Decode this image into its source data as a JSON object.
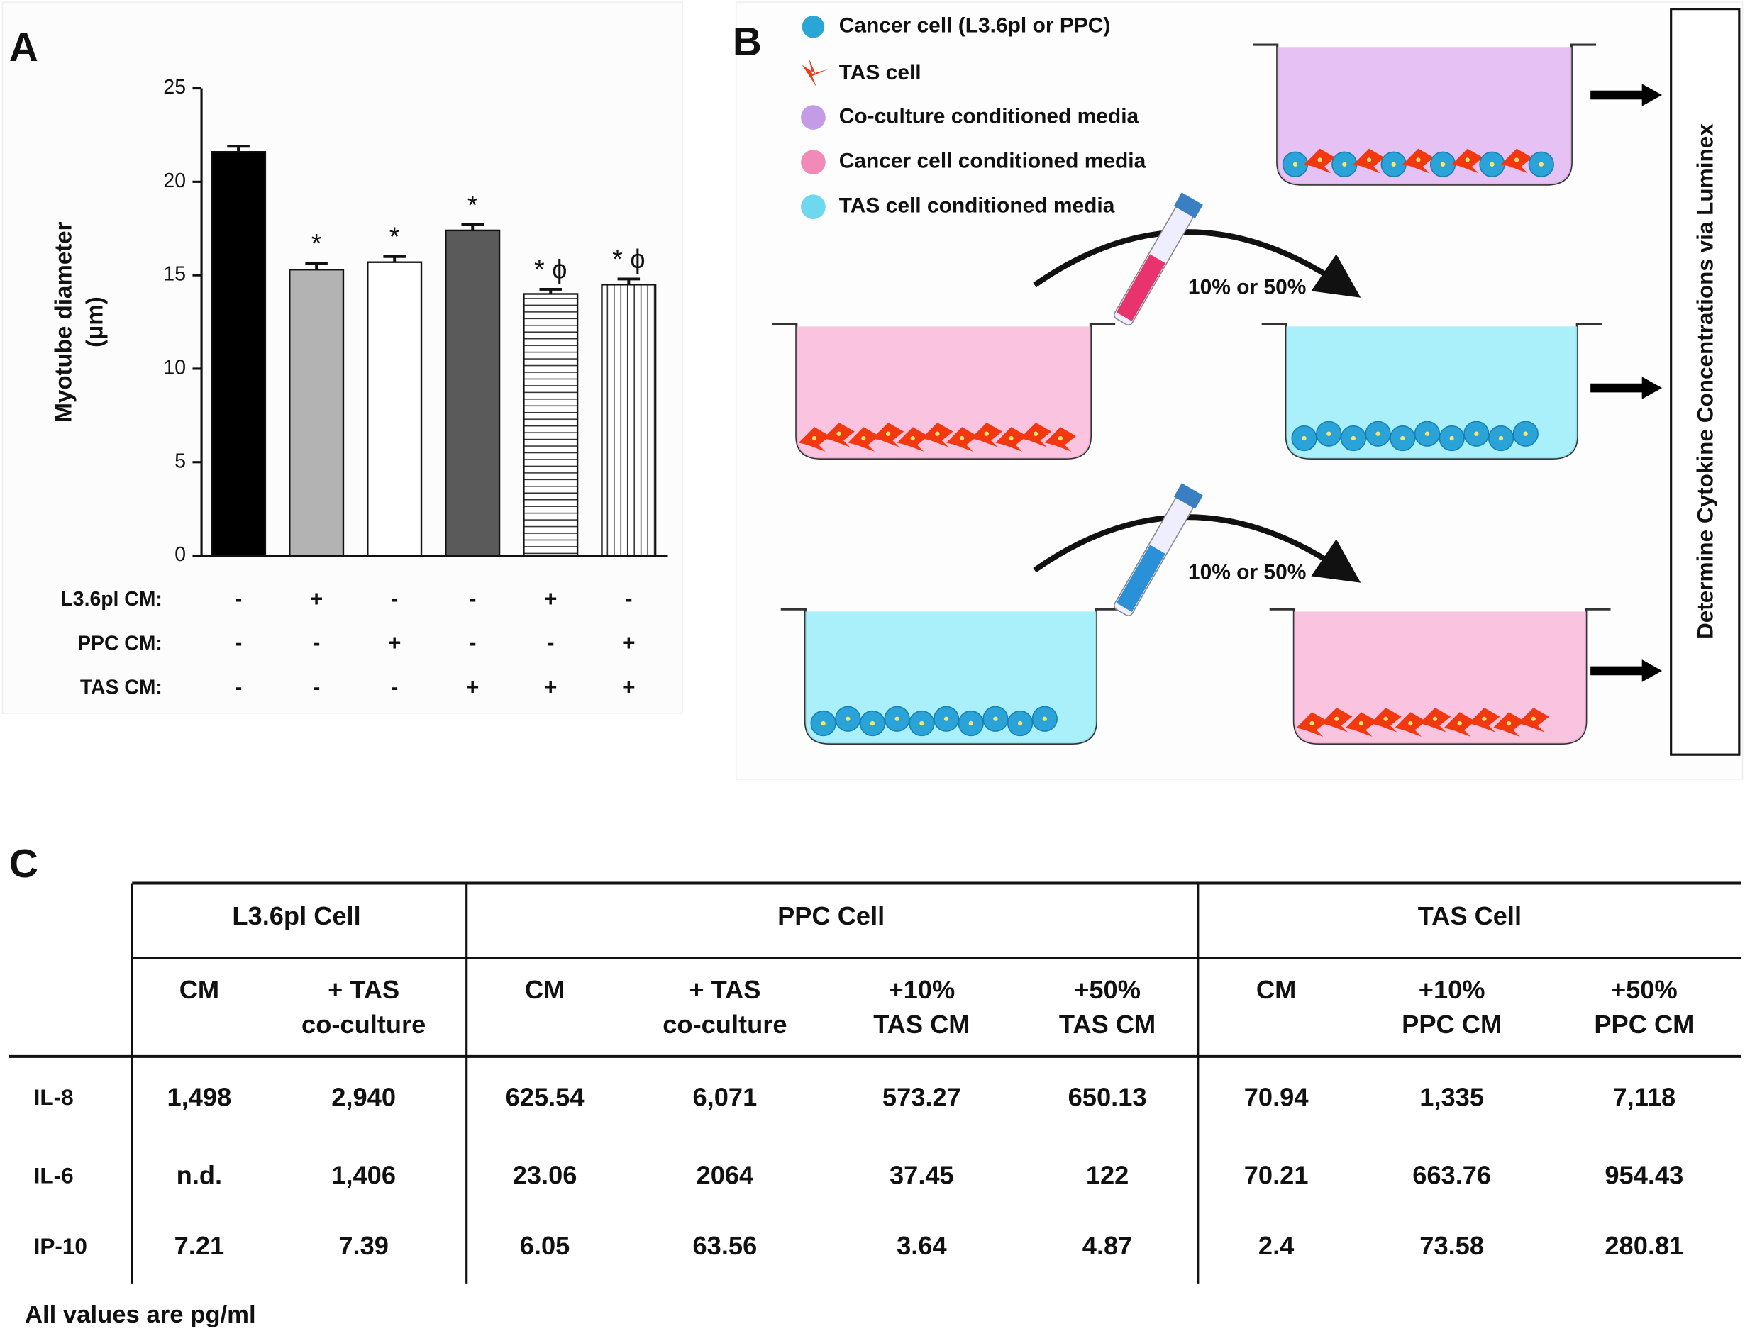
{
  "panel_labels": [
    "A",
    "B",
    "C"
  ],
  "chart_data": {
    "type": "bar",
    "ylabel": [
      "Myotube diameter",
      "(μm)"
    ],
    "values": [
      21.6,
      15.3,
      15.7,
      17.4,
      14.0,
      14.5
    ],
    "errors": [
      0.3,
      0.35,
      0.3,
      0.3,
      0.25,
      0.3
    ],
    "colors": [
      "#000000",
      "#b3b3b3",
      "#ffffff",
      "#5a5a5a",
      "#ffffff",
      "#ffffff"
    ],
    "patterns": [
      null,
      null,
      null,
      null,
      "horizontal",
      "vertical"
    ],
    "annotations": [
      null,
      "*",
      "*",
      "*",
      "* ϕ",
      "* ϕ"
    ],
    "ylim": [
      0,
      25
    ],
    "yticks": [
      0,
      5,
      10,
      15,
      20,
      25
    ],
    "conditions": [
      {
        "label": "L3.6pl CM:",
        "signs": [
          "-",
          "+",
          "-",
          "-",
          "+",
          "-"
        ]
      },
      {
        "label": "PPC CM:",
        "signs": [
          "-",
          "-",
          "+",
          "-",
          "-",
          "+"
        ]
      },
      {
        "label": "TAS CM:",
        "signs": [
          "-",
          "-",
          "-",
          "+",
          "+",
          "+"
        ]
      }
    ]
  },
  "diagram": {
    "legend": [
      "Cancer cell (L3.6pl or PPC)",
      "TAS cell",
      "Co-culture conditioned media",
      "Cancer cell conditioned media",
      "TAS cell conditioned media"
    ],
    "transfer_labels": [
      "10% or 50%",
      "10% or 50%"
    ],
    "readout": "Determine Cytokine Concentrations via Luminex"
  },
  "table": {
    "groups": [
      "L3.6pl Cell",
      "PPC Cell",
      "TAS Cell"
    ],
    "columns": [
      [
        "CM"
      ],
      [
        "+ TAS",
        "co-culture"
      ],
      [
        "CM"
      ],
      [
        "+ TAS",
        "co-culture"
      ],
      [
        "+10%",
        "TAS CM"
      ],
      [
        "+50%",
        "TAS CM"
      ],
      [
        "CM"
      ],
      [
        "+10%",
        "PPC CM"
      ],
      [
        "+50%",
        "PPC CM"
      ]
    ],
    "rows": [
      [
        "IL-8",
        "1,498",
        "2,940",
        "625.54",
        "6,071",
        "573.27",
        "650.13",
        "70.94",
        "1,335",
        "7,118"
      ],
      [
        "IL-6",
        "n.d.",
        "1,406",
        "23.06",
        "2064",
        "37.45",
        "122",
        "70.21",
        "663.76",
        "954.43"
      ],
      [
        "IP-10",
        "7.21",
        "7.39",
        "6.05",
        "63.56",
        "3.64",
        "4.87",
        "2.4",
        "73.58",
        "280.81"
      ]
    ],
    "footnote": "All values are pg/ml"
  }
}
